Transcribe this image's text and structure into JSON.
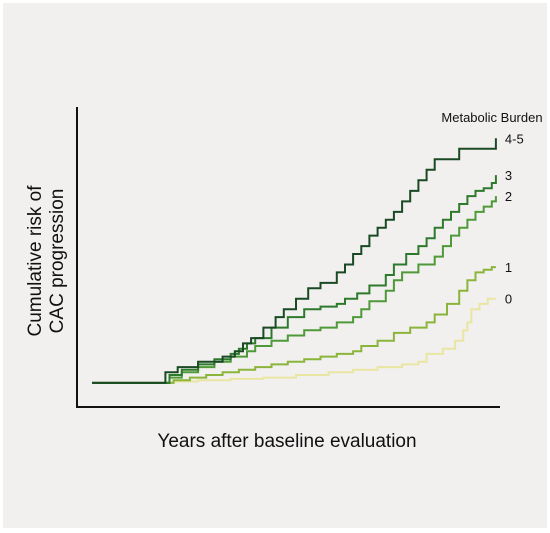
{
  "chart_data": {
    "type": "line",
    "step": true,
    "title": "",
    "xlabel": "Years after baseline evaluation",
    "ylabel_lines": [
      "Cumulative risk of",
      "CAC progression"
    ],
    "legend_title": "Metabolic Burden",
    "xlim": [
      0,
      100
    ],
    "ylim": [
      0,
      100
    ],
    "grid": false,
    "series": [
      {
        "name": "0",
        "color": "#e9e6a2",
        "points": [
          [
            0,
            5
          ],
          [
            16,
            5
          ],
          [
            20,
            5.5
          ],
          [
            26,
            6
          ],
          [
            34,
            6.5
          ],
          [
            42,
            7
          ],
          [
            50,
            8
          ],
          [
            58,
            9
          ],
          [
            64,
            10
          ],
          [
            70,
            11
          ],
          [
            76,
            12
          ],
          [
            80,
            13
          ],
          [
            82,
            16
          ],
          [
            86,
            18
          ],
          [
            89,
            21
          ],
          [
            91,
            25
          ],
          [
            92,
            28
          ],
          [
            93,
            33
          ],
          [
            95,
            35
          ],
          [
            97,
            37
          ],
          [
            99,
            37
          ]
        ]
      },
      {
        "name": "1",
        "color": "#8bb53a",
        "points": [
          [
            0,
            5
          ],
          [
            16,
            5
          ],
          [
            20,
            6
          ],
          [
            24,
            7
          ],
          [
            28,
            8
          ],
          [
            32,
            9
          ],
          [
            36,
            10
          ],
          [
            40,
            11
          ],
          [
            44,
            12
          ],
          [
            48,
            13
          ],
          [
            52,
            14
          ],
          [
            56,
            15
          ],
          [
            60,
            16
          ],
          [
            64,
            17
          ],
          [
            66,
            19
          ],
          [
            70,
            21
          ],
          [
            74,
            24
          ],
          [
            78,
            26
          ],
          [
            82,
            28
          ],
          [
            84,
            31
          ],
          [
            87,
            35
          ],
          [
            90,
            40
          ],
          [
            92,
            44
          ],
          [
            94,
            47
          ],
          [
            96,
            48
          ],
          [
            98,
            49
          ],
          [
            99,
            49
          ]
        ]
      },
      {
        "name": "2",
        "color": "#4e9a38",
        "points": [
          [
            0,
            5
          ],
          [
            16,
            5
          ],
          [
            19,
            7
          ],
          [
            22,
            9
          ],
          [
            26,
            11
          ],
          [
            30,
            13
          ],
          [
            34,
            15
          ],
          [
            38,
            17
          ],
          [
            40,
            19
          ],
          [
            44,
            21
          ],
          [
            48,
            23
          ],
          [
            52,
            25
          ],
          [
            56,
            26
          ],
          [
            60,
            28
          ],
          [
            64,
            30
          ],
          [
            66,
            33
          ],
          [
            68,
            36
          ],
          [
            72,
            40
          ],
          [
            74,
            44
          ],
          [
            76,
            47
          ],
          [
            80,
            50
          ],
          [
            84,
            53
          ],
          [
            86,
            57
          ],
          [
            88,
            61
          ],
          [
            90,
            64
          ],
          [
            92,
            67
          ],
          [
            94,
            70
          ],
          [
            96,
            72
          ],
          [
            98,
            74
          ],
          [
            99,
            76
          ]
        ]
      },
      {
        "name": "3",
        "color": "#2e7a2c",
        "points": [
          [
            0,
            5
          ],
          [
            16,
            5
          ],
          [
            19,
            8
          ],
          [
            22,
            10
          ],
          [
            26,
            12
          ],
          [
            30,
            14
          ],
          [
            34,
            16
          ],
          [
            36,
            18
          ],
          [
            38,
            20
          ],
          [
            40,
            22
          ],
          [
            44,
            26
          ],
          [
            48,
            30
          ],
          [
            52,
            33
          ],
          [
            56,
            34
          ],
          [
            60,
            35
          ],
          [
            62,
            37
          ],
          [
            65,
            39
          ],
          [
            68,
            42
          ],
          [
            72,
            46
          ],
          [
            74,
            50
          ],
          [
            77,
            54
          ],
          [
            80,
            57
          ],
          [
            82,
            60
          ],
          [
            84,
            64
          ],
          [
            86,
            67
          ],
          [
            88,
            70
          ],
          [
            90,
            73
          ],
          [
            92,
            76
          ],
          [
            94,
            78
          ],
          [
            96,
            79
          ],
          [
            98,
            81
          ],
          [
            99,
            84
          ]
        ]
      },
      {
        "name": "4-5",
        "color": "#1a4a24",
        "points": [
          [
            0,
            5
          ],
          [
            15,
            5
          ],
          [
            18,
            9
          ],
          [
            21,
            11
          ],
          [
            26,
            13
          ],
          [
            32,
            15
          ],
          [
            35,
            17
          ],
          [
            37,
            20
          ],
          [
            39,
            22
          ],
          [
            42,
            26
          ],
          [
            45,
            30
          ],
          [
            47,
            33
          ],
          [
            50,
            37
          ],
          [
            53,
            41
          ],
          [
            56,
            43
          ],
          [
            60,
            47
          ],
          [
            62,
            50
          ],
          [
            64,
            54
          ],
          [
            66,
            57
          ],
          [
            68,
            61
          ],
          [
            70,
            64
          ],
          [
            72,
            67
          ],
          [
            74,
            70
          ],
          [
            76,
            74
          ],
          [
            78,
            78
          ],
          [
            80,
            82
          ],
          [
            82,
            86
          ],
          [
            84,
            90
          ],
          [
            86,
            90
          ],
          [
            90,
            94
          ],
          [
            95,
            94
          ],
          [
            98,
            94
          ],
          [
            99,
            98
          ]
        ]
      }
    ]
  }
}
